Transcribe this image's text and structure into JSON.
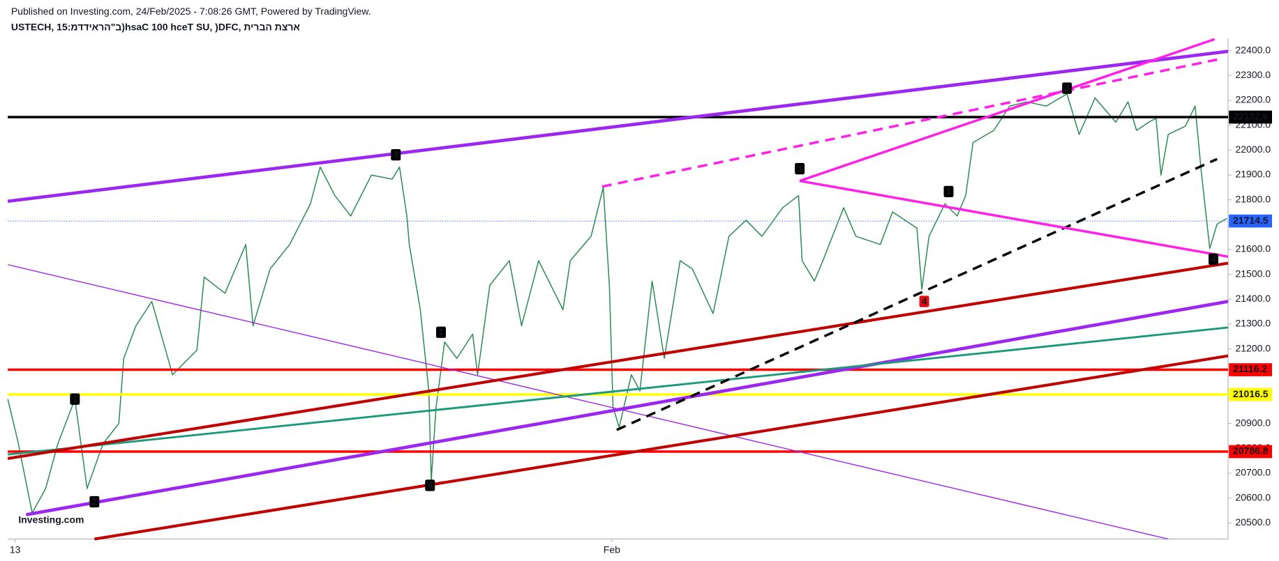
{
  "chart_data": {
    "type": "line",
    "subtitle": "Published on Investing.com, 24/Feb/2025 - 7:08:26 GMT, Powered by TradingView.",
    "title": "USTECH, 15:מדדיארה\"ב)hsaC 100 hceT SU, )DFC, תירבה תצרא",
    "watermark": "Investing.com",
    "color": "#2e8b57",
    "x": [
      0,
      0.8,
      2,
      3.1,
      4.1,
      5.5,
      6.5,
      7.8,
      9.1,
      9.5,
      10.5,
      11.8,
      13.5,
      15.5,
      16.1,
      17.8,
      19.5,
      20.1,
      21.5,
      23.1,
      24.8,
      25.6,
      26.8,
      28.1,
      29.8,
      31.5,
      32.1,
      32.7,
      32.9,
      33.8,
      34.5,
      34.7,
      35.1,
      35.8,
      36.8,
      38.1,
      38.5,
      39.5,
      41.1,
      42.1,
      43.5,
      45.5,
      46.1,
      47.8,
      48.8,
      49.3,
      49.6,
      50.1,
      51.1,
      51.8,
      52.8,
      53.8,
      55.1,
      56.1,
      57.8,
      59.1,
      60.5,
      61.8,
      63.5,
      64.8,
      65.1,
      66.1,
      66.8,
      68.5,
      69.5,
      71.5,
      72.5,
      73.5,
      74.5,
      74.9,
      75.5,
      76.8,
      77.8,
      78.5,
      79.1,
      80.8,
      82.1,
      83.5,
      85.1,
      86.8,
      87.8,
      89.1,
      90.8,
      91.8,
      92.5,
      93.5,
      94.1,
      94.5,
      95.1,
      96.5,
      97.3,
      97.8,
      98.5,
      99.1,
      99.9
    ],
    "values": [
      20998,
      20834,
      20540,
      20638,
      20818,
      20998,
      20638,
      20818,
      20900,
      21162,
      21293,
      21391,
      21096,
      21195,
      21489,
      21424,
      21620,
      21293,
      21522,
      21620,
      21784,
      21932,
      21817,
      21735,
      21899,
      21883,
      21932,
      21735,
      21620,
      21358,
      21031,
      20671,
      20966,
      21228,
      21162,
      21260,
      21096,
      21456,
      21555,
      21293,
      21555,
      21358,
      21555,
      21653,
      21850,
      21456,
      20966,
      20884,
      21096,
      21031,
      21473,
      21162,
      21555,
      21522,
      21342,
      21653,
      21718,
      21653,
      21768,
      21817,
      21555,
      21473,
      21555,
      21768,
      21653,
      21620,
      21751,
      21719,
      21686,
      21440,
      21653,
      21784,
      21735,
      21817,
      22030,
      22079,
      22177,
      22194,
      22177,
      22226,
      22063,
      22210,
      22112,
      22194,
      22079,
      22112,
      22128,
      21899,
      22063,
      22096,
      22177,
      21916,
      21604,
      21702,
      21725
    ],
    "xlim": [
      0,
      100
    ],
    "ylim": [
      20435,
      22450
    ],
    "xticks": [
      {
        "value": 0.6,
        "label": "13"
      },
      {
        "value": 49.5,
        "label": "Feb"
      }
    ],
    "yticks": [
      {
        "value": 20500,
        "label": "20500.0"
      },
      {
        "value": 20600,
        "label": "20600.0"
      },
      {
        "value": 20700,
        "label": "20700.0"
      },
      {
        "value": 20800,
        "label": "20800.0"
      },
      {
        "value": 20900,
        "label": "20900.0"
      },
      {
        "value": 21000,
        "label": "21000.0"
      },
      {
        "value": 21100,
        "label": "21100.0"
      },
      {
        "value": 21200,
        "label": "21200.0"
      },
      {
        "value": 21300,
        "label": "21300.0"
      },
      {
        "value": 21400,
        "label": "21400.0"
      },
      {
        "value": 21500,
        "label": "21500.0"
      },
      {
        "value": 21600,
        "label": "21600.0"
      },
      {
        "value": 21700,
        "label": "21700.0"
      },
      {
        "value": 21800,
        "label": "21800.0"
      },
      {
        "value": 21900,
        "label": "21900.0"
      },
      {
        "value": 22000,
        "label": "22000.0"
      },
      {
        "value": 22100,
        "label": "22100.0"
      },
      {
        "value": 22200,
        "label": "22200.0"
      },
      {
        "value": 22300,
        "label": "22300.0"
      },
      {
        "value": 22400,
        "label": "22400.0"
      }
    ],
    "grid": false,
    "levels": [
      {
        "value": 22132.6,
        "color": "#000000",
        "text_color": "#ffffff"
      },
      {
        "value": 21116.2,
        "color": "#ff0000",
        "text_color": "#ffffff"
      },
      {
        "value": 21016.5,
        "color": "#ffff00",
        "text_color": "#000000"
      },
      {
        "value": 20786.8,
        "color": "#ff0000",
        "text_color": "#ffffff"
      }
    ],
    "last_price": {
      "value": 21714.5,
      "color": "#2962ff"
    },
    "trendlines": [
      {
        "x": [
          0,
          100
        ],
        "y": [
          21794,
          22397
        ],
        "color": "#9c27f0",
        "width": 4,
        "dash": false
      },
      {
        "x": [
          1.5,
          100
        ],
        "y": [
          20533,
          21391
        ],
        "color": "#9c27f0",
        "width": 4,
        "dash": false
      },
      {
        "x": [
          0,
          95.1
        ],
        "y": [
          21539,
          20435
        ],
        "color": "#9c27f0",
        "width": 1.2,
        "dash": false
      },
      {
        "x": [
          0,
          100
        ],
        "y": [
          20775,
          21286
        ],
        "color": "#1a9a7a",
        "width": 2.5,
        "dash": false
      },
      {
        "x": [
          0,
          100
        ],
        "y": [
          20759,
          21545
        ],
        "color": "#c00000",
        "width": 3.5,
        "dash": false
      },
      {
        "x": [
          7.1,
          100
        ],
        "y": [
          20435,
          21172
        ],
        "color": "#c00000",
        "width": 3.5,
        "dash": false
      },
      {
        "x": [
          49.9,
          99.1
        ],
        "y": [
          20874,
          21964
        ],
        "color": "#000000",
        "width": 3,
        "dash": true
      },
      {
        "x": [
          48.7,
          99.1
        ],
        "y": [
          21853,
          22364
        ],
        "color": "#ff1fe6",
        "width": 3,
        "dash": true
      },
      {
        "x": [
          64.9,
          98.9
        ],
        "y": [
          21876,
          22446
        ],
        "color": "#ff1fe6",
        "width": 3,
        "dash": false
      },
      {
        "x": [
          64.9,
          100
        ],
        "y": [
          21876,
          21571
        ],
        "color": "#ff1fe6",
        "width": 3,
        "dash": false
      }
    ],
    "markers": [
      {
        "label": "1",
        "x": 5.5,
        "y": 20998,
        "color": "#000000"
      },
      {
        "label": "2",
        "x": 7.1,
        "y": 20585,
        "color": "#000000"
      },
      {
        "label": "3",
        "x": 31.8,
        "y": 21981,
        "color": "#000000"
      },
      {
        "label": "1",
        "x": 35.5,
        "y": 21267,
        "color": "#000000"
      },
      {
        "label": "4",
        "x": 34.6,
        "y": 20651,
        "color": "#000000"
      },
      {
        "label": "3",
        "x": 64.9,
        "y": 21925,
        "color": "#000000"
      },
      {
        "label": "4",
        "x": 75.1,
        "y": 21391,
        "color": "#e01010"
      },
      {
        "label": "1",
        "x": 77.1,
        "y": 21833,
        "color": "#000000"
      },
      {
        "label": "3",
        "x": 86.8,
        "y": 22249,
        "color": "#000000"
      },
      {
        "label": "4",
        "x": 98.8,
        "y": 21561,
        "color": "#000000"
      }
    ]
  }
}
